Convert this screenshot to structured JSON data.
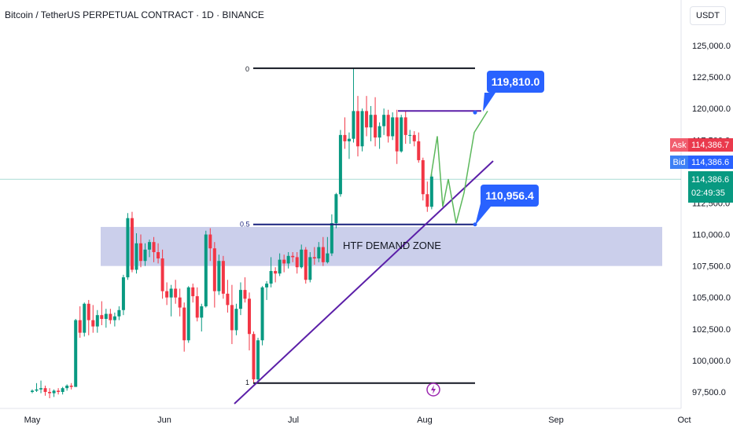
{
  "header": {
    "title": "Bitcoin / TetherUS PERPETUAL CONTRACT · 1D · BINANCE"
  },
  "price_scale": {
    "currency": "USDT",
    "ticks": [
      "125,000.0",
      "122,500.0",
      "120,000.0",
      "117,500.0",
      "112,500.0",
      "110,000.0",
      "107,500.0",
      "105,000.0",
      "102,500.0",
      "100,000.0",
      "97,500.0"
    ],
    "ask_label": "Ask",
    "ask_value": "114,386.7",
    "bid_label": "Bid",
    "bid_value": "114,386.6",
    "last_price": "114,386.6",
    "countdown": "02:49:35"
  },
  "time_axis": [
    "May",
    "Jun",
    "Jul",
    "Aug",
    "Sep",
    "Oct"
  ],
  "annotations": {
    "fib_0": "0",
    "fib_05": "0.5",
    "fib_1": "1",
    "target_high": "119,810.0",
    "target_low": "110,956.4",
    "demand_zone": "HTF DEMAND ZONE"
  },
  "colors": {
    "up": "#089981",
    "down": "#f23645",
    "zone": "#c5cae9",
    "trend": "#5b1fa8",
    "accent": "#2962ff",
    "projection": "#5cb85c"
  },
  "chart_data": {
    "type": "candlestick",
    "title": "Bitcoin / TetherUS PERPETUAL CONTRACT · 1D · BINANCE",
    "xlabel": "",
    "ylabel": "USDT",
    "ylim": [
      96600,
      126500
    ],
    "x_ticks": [
      "May",
      "Jun",
      "Jul",
      "Aug",
      "Sep",
      "Oct"
    ],
    "candles": [
      [
        97500,
        97700,
        97400,
        97600
      ],
      [
        97600,
        98200,
        97500,
        97700
      ],
      [
        97700,
        98400,
        97400,
        97800
      ],
      [
        97800,
        98000,
        97200,
        97500
      ],
      [
        97500,
        97800,
        97000,
        97400
      ],
      [
        97400,
        97700,
        97100,
        97600
      ],
      [
        97600,
        97800,
        97300,
        97500
      ],
      [
        97500,
        97900,
        97300,
        97800
      ],
      [
        97800,
        98100,
        97600,
        98000
      ],
      [
        98000,
        98200,
        97700,
        97900
      ],
      [
        97900,
        103300,
        97900,
        103200
      ],
      [
        103200,
        104300,
        101800,
        102200
      ],
      [
        102200,
        104600,
        101900,
        104500
      ],
      [
        104500,
        104800,
        102000,
        103200
      ],
      [
        103200,
        104400,
        102200,
        102700
      ],
      [
        102700,
        104000,
        102200,
        103600
      ],
      [
        103600,
        104700,
        102800,
        103300
      ],
      [
        103300,
        104100,
        102600,
        103700
      ],
      [
        103700,
        104100,
        102900,
        103200
      ],
      [
        103200,
        103800,
        102700,
        103500
      ],
      [
        103500,
        104300,
        103200,
        104000
      ],
      [
        104000,
        106800,
        103600,
        106600
      ],
      [
        106600,
        111700,
        106400,
        111300
      ],
      [
        111300,
        111800,
        107000,
        107200
      ],
      [
        107200,
        110100,
        106900,
        109300
      ],
      [
        109300,
        110000,
        107400,
        107900
      ],
      [
        107900,
        109300,
        107500,
        108800
      ],
      [
        108800,
        109600,
        108200,
        109400
      ],
      [
        109400,
        109800,
        107800,
        108600
      ],
      [
        108600,
        109300,
        107700,
        108100
      ],
      [
        108100,
        108800,
        104900,
        105500
      ],
      [
        105500,
        106200,
        104400,
        105000
      ],
      [
        105000,
        106000,
        103500,
        105700
      ],
      [
        105700,
        106400,
        104500,
        105000
      ],
      [
        105000,
        105700,
        103500,
        104200
      ],
      [
        104200,
        104600,
        100700,
        101600
      ],
      [
        101600,
        105900,
        101400,
        105800
      ],
      [
        105800,
        106100,
        104600,
        105100
      ],
      [
        105100,
        105800,
        103100,
        103400
      ],
      [
        103400,
        104500,
        102300,
        104300
      ],
      [
        104300,
        110300,
        104200,
        110000
      ],
      [
        110000,
        110500,
        107900,
        108900
      ],
      [
        108900,
        109400,
        104200,
        105500
      ],
      [
        105500,
        108400,
        105200,
        107900
      ],
      [
        107900,
        108300,
        104900,
        105300
      ],
      [
        105300,
        106400,
        103800,
        104400
      ],
      [
        104400,
        106000,
        101300,
        102400
      ],
      [
        102400,
        104500,
        102000,
        104100
      ],
      [
        104100,
        106200,
        103600,
        105600
      ],
      [
        105600,
        106600,
        104600,
        104900
      ],
      [
        104900,
        105400,
        100800,
        102100
      ],
      [
        102100,
        102300,
        98200,
        98500
      ],
      [
        98500,
        101800,
        98200,
        101600
      ],
      [
        101600,
        105900,
        101200,
        105800
      ],
      [
        105800,
        106300,
        104800,
        106100
      ],
      [
        106100,
        108200,
        105800,
        107100
      ],
      [
        107100,
        107400,
        106200,
        106900
      ],
      [
        106900,
        108500,
        106700,
        108000
      ],
      [
        108000,
        108400,
        107000,
        107700
      ],
      [
        107700,
        108600,
        107300,
        108300
      ],
      [
        108300,
        108600,
        107800,
        108200
      ],
      [
        108200,
        108600,
        106900,
        107400
      ],
      [
        107400,
        109200,
        107300,
        108800
      ],
      [
        108800,
        109000,
        106100,
        106400
      ],
      [
        106400,
        108600,
        106200,
        108200
      ],
      [
        108200,
        109000,
        107600,
        108100
      ],
      [
        108100,
        109400,
        107800,
        109000
      ],
      [
        109000,
        109800,
        107500,
        107800
      ],
      [
        107800,
        109800,
        107700,
        108500
      ],
      [
        108500,
        111600,
        108300,
        110900
      ],
      [
        110900,
        113300,
        110500,
        113200
      ],
      [
        113200,
        118300,
        113000,
        117900
      ],
      [
        117900,
        119300,
        116800,
        117400
      ],
      [
        117400,
        118100,
        116000,
        117600
      ],
      [
        117600,
        123200,
        117300,
        119800
      ],
      [
        119800,
        121000,
        116200,
        117000
      ],
      [
        117000,
        120000,
        116600,
        119800
      ],
      [
        119800,
        121000,
        117800,
        118500
      ],
      [
        118500,
        120200,
        117400,
        119500
      ],
      [
        119500,
        120900,
        117000,
        117700
      ],
      [
        117700,
        118900,
        116800,
        118600
      ],
      [
        118600,
        120000,
        117900,
        119500
      ],
      [
        119500,
        119900,
        117300,
        117800
      ],
      [
        117800,
        119700,
        117500,
        119300
      ],
      [
        119300,
        119900,
        115600,
        116600
      ],
      [
        116600,
        119500,
        116500,
        119300
      ],
      [
        119300,
        119800,
        117200,
        117900
      ],
      [
        117900,
        118300,
        117200,
        117900
      ],
      [
        117900,
        118200,
        117000,
        117400
      ],
      [
        117400,
        118100,
        115700,
        115900
      ],
      [
        115900,
        116100,
        112700,
        113200
      ],
      [
        113200,
        114200,
        111800,
        112200
      ],
      [
        112200,
        114800,
        112000,
        114600
      ]
    ],
    "levels": {
      "fib_0": 123200,
      "fib_05": 110800,
      "fib_1": 98200,
      "resistance_top": 119810,
      "support_target": 110956.4
    },
    "demand_zone": [
      107500,
      110600
    ],
    "projection": [
      114600,
      117800,
      112200,
      114400,
      110900,
      113300,
      118100,
      119800
    ]
  }
}
